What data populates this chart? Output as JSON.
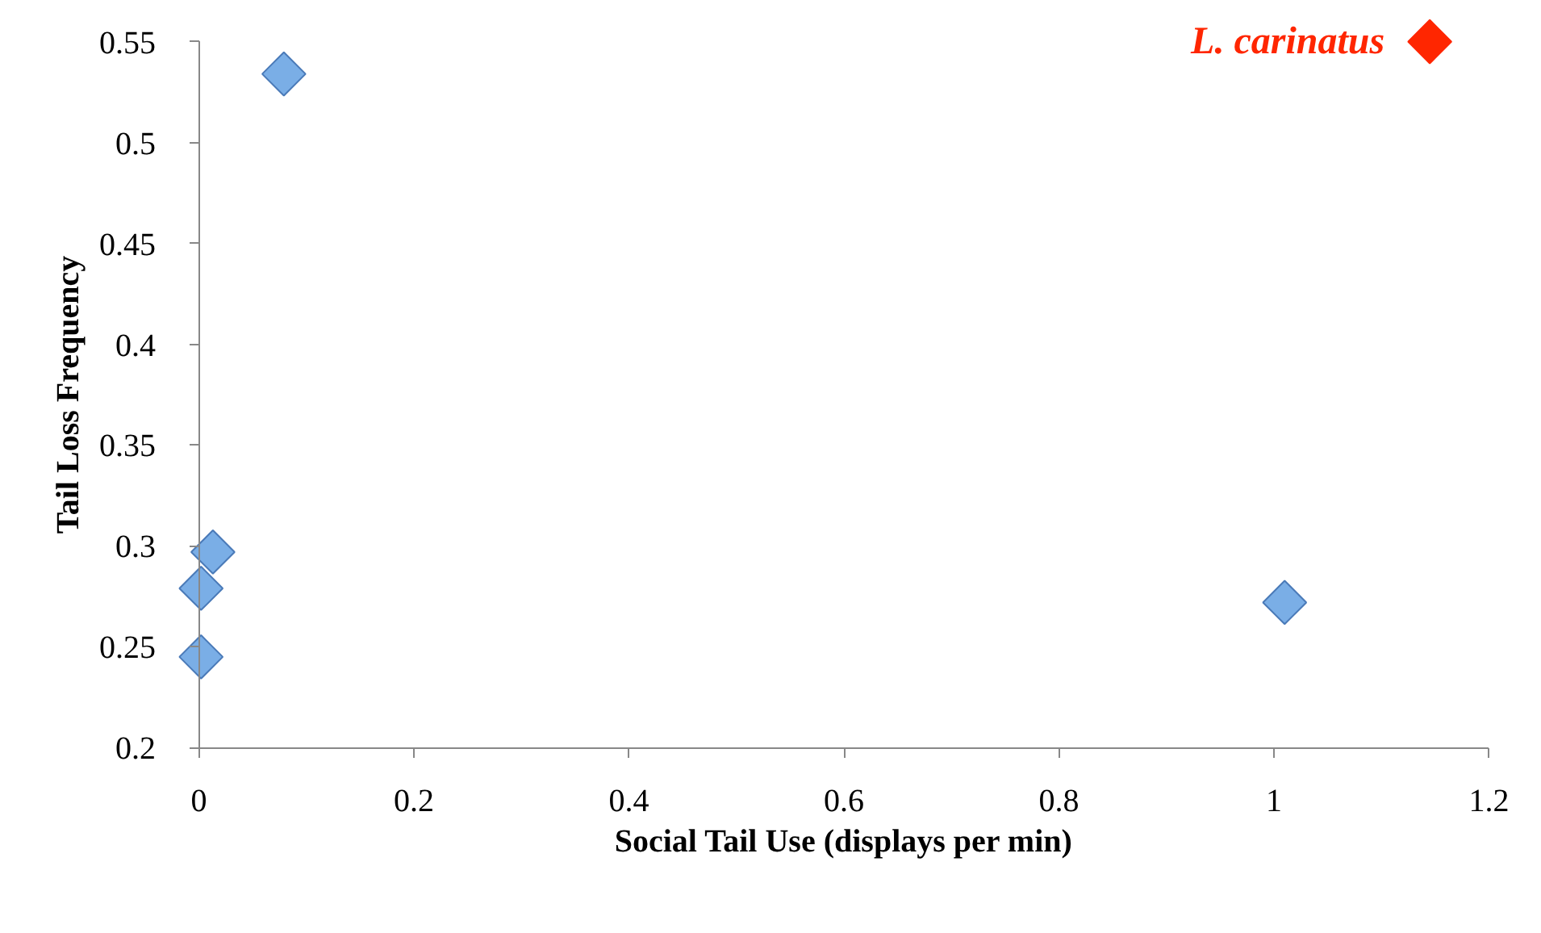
{
  "chart_data": {
    "type": "scatter",
    "xlabel": "Social Tail Use (displays per min)",
    "ylabel": "Tail Loss Frequency",
    "marker": "diamond",
    "grid": false,
    "xlim": [
      0,
      1.2
    ],
    "ylim": [
      0.2,
      0.55
    ],
    "xticks": [
      0,
      0.2,
      0.4,
      0.6,
      0.8,
      1,
      1.2
    ],
    "yticks": [
      0.2,
      0.25,
      0.3,
      0.35,
      0.4,
      0.45,
      0.5,
      0.55
    ],
    "series": [
      {
        "color": "#7aaee6",
        "x": [
          0.079,
          0.013,
          0.002,
          0.002,
          1.01
        ],
        "values": [
          0.534,
          0.297,
          0.279,
          0.245,
          0.272
        ]
      },
      {
        "name": "L. carinatus",
        "color": "#ff2600",
        "x": [
          1.145
        ],
        "values": [
          0.55
        ]
      }
    ]
  }
}
